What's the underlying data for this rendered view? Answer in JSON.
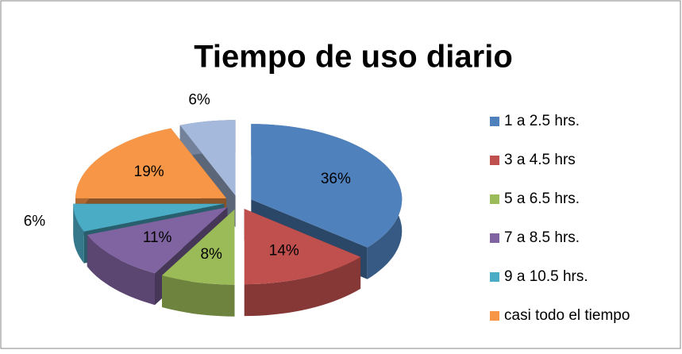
{
  "chart_data": {
    "type": "pie3d",
    "title": "Tiempo de uso diario",
    "categories": [
      "1 a 2.5 hrs.",
      "3 a 4.5 hrs",
      "5 a 6.5 hrs.",
      "7 a 8.5 hrs.",
      "9 a 10.5 hrs.",
      "casi todo el tiempo",
      null
    ],
    "values": [
      36,
      14,
      8,
      11,
      6,
      19,
      6
    ],
    "value_labels": [
      "36%",
      "14%",
      "8%",
      "11%",
      "6%",
      "19%",
      "6%"
    ],
    "colors": [
      "#4f81bd",
      "#c0504d",
      "#9bbb59",
      "#8064a2",
      "#4bacc6",
      "#f79646",
      "#a5b9dc"
    ],
    "legend": "right"
  }
}
